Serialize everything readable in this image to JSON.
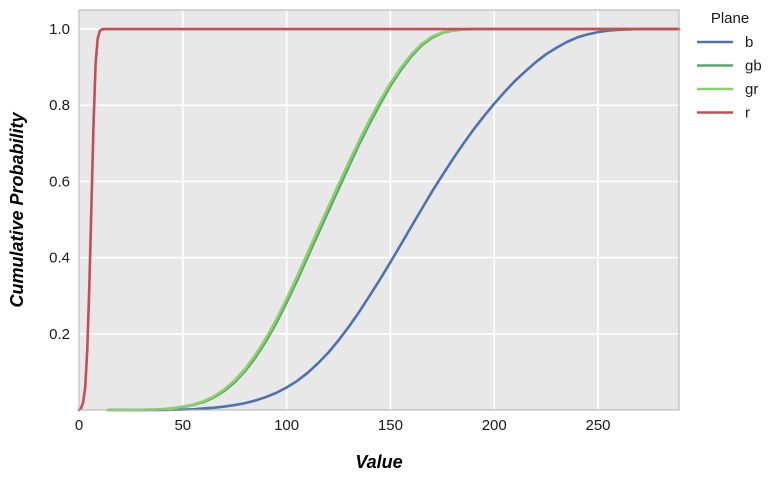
{
  "chart_data": {
    "type": "line",
    "title": "",
    "xlabel": "Value",
    "ylabel": "Cumulative Probability",
    "xlim": [
      0,
      289
    ],
    "ylim": [
      0,
      1.05
    ],
    "x_ticks": [
      0,
      50,
      100,
      150,
      200,
      250
    ],
    "y_ticks": [
      0.2,
      0.4,
      0.6,
      0.8,
      1.0
    ],
    "x_tick_labels": [
      "0",
      "50",
      "100",
      "150",
      "200",
      "250"
    ],
    "y_tick_labels": [
      "0.2",
      "0.4",
      "0.6",
      "0.8",
      "1.0"
    ],
    "grid": true,
    "legend": {
      "title": "Plane",
      "placement": "right-outside-top"
    },
    "series": [
      {
        "name": "b",
        "color": "#4c72b0",
        "x": [
          14,
          30,
          40,
          50,
          55,
          60,
          65,
          70,
          75,
          80,
          85,
          90,
          95,
          100,
          105,
          110,
          115,
          120,
          125,
          130,
          135,
          140,
          145,
          150,
          155,
          160,
          165,
          170,
          175,
          180,
          185,
          190,
          195,
          200,
          205,
          210,
          215,
          220,
          225,
          230,
          235,
          240,
          245,
          250,
          255,
          260,
          265,
          270,
          280,
          289
        ],
        "y": [
          0.0,
          0.0,
          0.0,
          0.001,
          0.002,
          0.004,
          0.006,
          0.009,
          0.013,
          0.018,
          0.025,
          0.034,
          0.045,
          0.059,
          0.076,
          0.097,
          0.122,
          0.15,
          0.183,
          0.219,
          0.258,
          0.3,
          0.343,
          0.388,
          0.434,
          0.481,
          0.527,
          0.573,
          0.616,
          0.658,
          0.698,
          0.736,
          0.771,
          0.804,
          0.835,
          0.864,
          0.889,
          0.913,
          0.934,
          0.951,
          0.966,
          0.978,
          0.986,
          0.992,
          0.996,
          0.998,
          0.999,
          1.0,
          1.0,
          1.0
        ]
      },
      {
        "name": "gb",
        "color": "#55a868",
        "x": [
          14,
          25,
          30,
          40,
          45,
          50,
          55,
          60,
          65,
          70,
          75,
          80,
          85,
          90,
          95,
          100,
          105,
          110,
          115,
          120,
          125,
          130,
          135,
          140,
          145,
          150,
          155,
          160,
          165,
          170,
          175,
          180,
          185,
          190,
          195,
          200,
          210,
          220,
          250,
          289
        ],
        "y": [
          0.0,
          0.0,
          0.0,
          0.002,
          0.004,
          0.008,
          0.013,
          0.021,
          0.033,
          0.05,
          0.073,
          0.102,
          0.138,
          0.18,
          0.228,
          0.282,
          0.339,
          0.4,
          0.46,
          0.52,
          0.58,
          0.64,
          0.698,
          0.752,
          0.803,
          0.851,
          0.892,
          0.928,
          0.957,
          0.977,
          0.99,
          0.996,
          0.999,
          1.0,
          1.0,
          1.0,
          1.0,
          1.0,
          1.0,
          1.0
        ]
      },
      {
        "name": "gr",
        "color": "#8cd06a",
        "x": [
          14,
          25,
          30,
          40,
          45,
          50,
          55,
          60,
          65,
          70,
          75,
          80,
          85,
          90,
          95,
          100,
          105,
          110,
          115,
          120,
          125,
          130,
          135,
          140,
          145,
          150,
          155,
          160,
          165,
          170,
          175,
          180,
          185,
          190,
          195,
          200,
          210,
          220,
          250,
          289
        ],
        "y": [
          0.0,
          0.0,
          0.001,
          0.002,
          0.005,
          0.009,
          0.014,
          0.023,
          0.036,
          0.054,
          0.078,
          0.108,
          0.145,
          0.188,
          0.237,
          0.292,
          0.35,
          0.411,
          0.472,
          0.532,
          0.592,
          0.651,
          0.708,
          0.762,
          0.812,
          0.858,
          0.898,
          0.933,
          0.961,
          0.98,
          0.991,
          0.997,
          0.999,
          1.0,
          1.0,
          1.0,
          1.0,
          1.0,
          1.0,
          1.0
        ]
      },
      {
        "name": "r",
        "color": "#c44e52",
        "x": [
          0,
          1,
          2,
          3,
          4,
          5,
          6,
          7,
          8,
          9,
          10,
          11,
          12,
          14,
          20,
          50,
          100,
          150,
          200,
          250,
          289
        ],
        "y": [
          0.0,
          0.005,
          0.02,
          0.06,
          0.16,
          0.33,
          0.54,
          0.75,
          0.91,
          0.975,
          0.995,
          0.999,
          1.0,
          1.0,
          1.0,
          1.0,
          1.0,
          1.0,
          1.0,
          1.0,
          1.0
        ]
      }
    ]
  }
}
